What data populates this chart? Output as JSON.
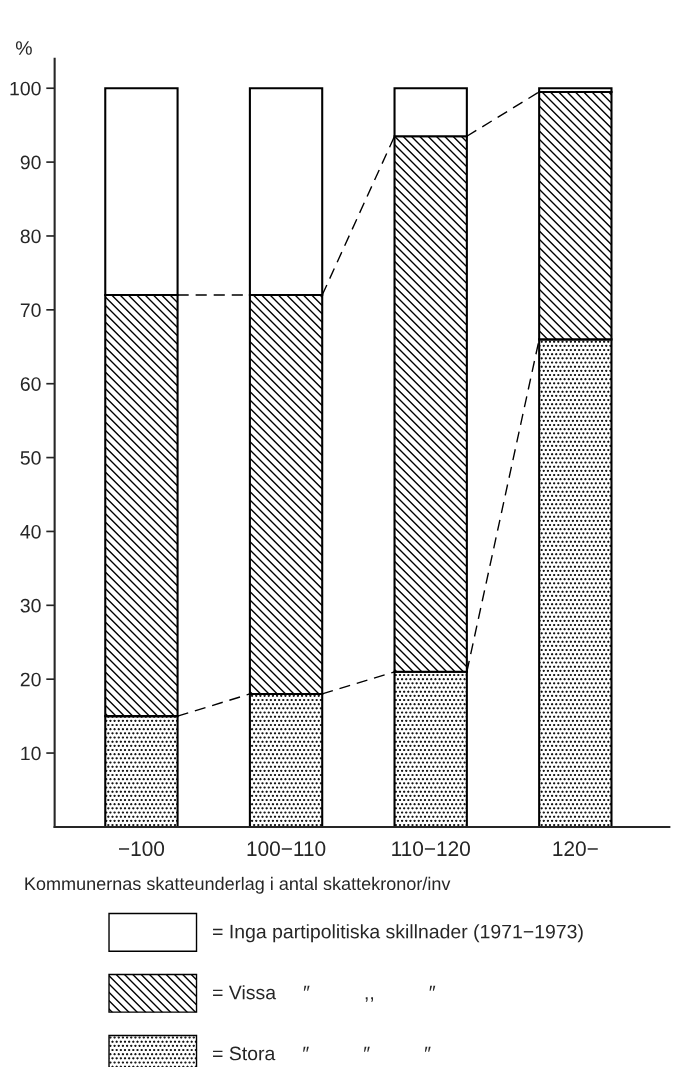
{
  "chart_data": {
    "type": "bar",
    "stacked": true,
    "ylabel": "%",
    "xlabel": "Kommunernas skatteunderlag i antal skattekronor/inv",
    "categories": [
      "−100",
      "100−110",
      "110−120",
      "120−"
    ],
    "series": [
      {
        "name": "= Stora     ″          ″          ″",
        "color": "#000000",
        "values": [
          15,
          18,
          21,
          66
        ]
      },
      {
        "name": "= Vissa     ″          ,,          ″",
        "color": "#000000",
        "values": [
          57,
          54,
          72.5,
          33.5
        ]
      },
      {
        "name": "= Inga partipolitiska skillnader (1971−1973)",
        "color": "#ffffff",
        "values": [
          28,
          28,
          6.5,
          0.5
        ]
      }
    ],
    "ylim": [
      0,
      104
    ],
    "yticks": [
      10,
      20,
      30,
      40,
      50,
      60,
      70,
      80,
      90,
      100
    ],
    "grid": false,
    "legend": "bottom"
  }
}
